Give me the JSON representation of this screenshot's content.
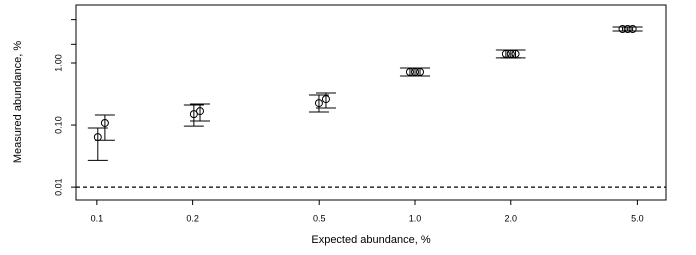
{
  "chart_data": {
    "type": "scatter",
    "xlabel": "Expected abundance, %",
    "ylabel": "Measured abundance, %",
    "xscale": "log",
    "yscale": "log",
    "xlim": [
      0.086,
      6.15
    ],
    "ylim": [
      0.0062,
      8.6
    ],
    "xticks": [
      0.1,
      0.2,
      0.5,
      {
        "value": 1,
        "label": "1.0"
      },
      {
        "value": 2,
        "label": "2.0"
      },
      {
        "value": 5,
        "label": "5.0"
      }
    ],
    "yticks": [
      0.01,
      {
        "value": 0.1,
        "label": "0.10"
      },
      {
        "value": 1,
        "label": "1.00"
      }
    ],
    "yminor_ticks": [
      2,
      5
    ],
    "hline": 0.01,
    "color": "#000000",
    "series": [
      {
        "x": [
          0.1007,
          0.106,
          0.2018,
          0.211,
          0.499,
          0.525,
          0.964,
          1.0,
          1.037,
          1.93,
          2.0,
          2.07,
          4.49,
          4.66,
          4.83
        ],
        "values": [
          0.064,
          0.108,
          0.15,
          0.168,
          0.226,
          0.262,
          0.716,
          0.716,
          0.716,
          1.4,
          1.4,
          1.4,
          3.53,
          3.53,
          3.53
        ],
        "lower": [
          0.027,
          0.057,
          0.096,
          0.116,
          0.162,
          0.188,
          0.617,
          0.617,
          0.617,
          1.21,
          1.21,
          1.21,
          3.28,
          3.28,
          3.28
        ],
        "upper": [
          0.0895,
          0.145,
          0.21,
          0.218,
          0.305,
          0.328,
          0.83,
          0.83,
          0.83,
          1.62,
          1.62,
          1.62,
          3.81,
          3.81,
          3.81
        ]
      }
    ]
  }
}
